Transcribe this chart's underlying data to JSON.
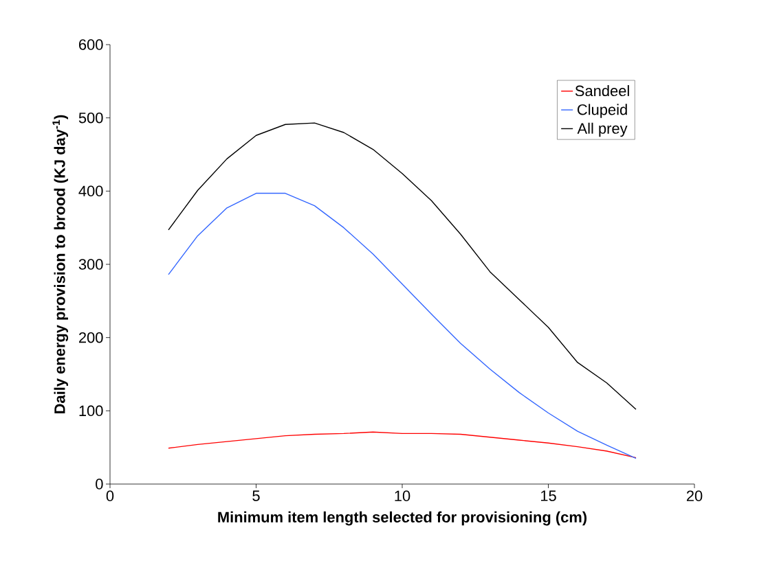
{
  "chart_data": {
    "type": "line",
    "xlabel": "Minimum item length selected for provisioning (cm)",
    "ylabel": "Daily energy provision to brood (KJ day$^{-1}$)",
    "x": [
      2,
      3,
      4,
      5,
      6,
      7,
      8,
      9,
      10,
      11,
      12,
      13,
      14,
      15,
      16,
      17,
      18
    ],
    "series": [
      {
        "name": "Sandeel",
        "color": "#ff0000",
        "values": [
          49,
          54,
          58,
          62,
          66,
          68,
          69,
          71,
          69,
          69,
          68,
          64,
          60,
          56,
          51,
          45,
          36
        ]
      },
      {
        "name": "Clupeid",
        "color": "#3366ff",
        "values": [
          286,
          339,
          377,
          397,
          397,
          380,
          350,
          314,
          273,
          232,
          192,
          157,
          125,
          97,
          72,
          53,
          35
        ]
      },
      {
        "name": "All prey",
        "color": "#000000",
        "values": [
          347,
          401,
          444,
          476,
          491,
          493,
          480,
          457,
          424,
          387,
          341,
          290,
          252,
          214,
          166,
          138,
          102
        ]
      }
    ],
    "xlim": [
      0,
      20
    ],
    "ylim": [
      0,
      600
    ],
    "xticks": [
      0,
      5,
      10,
      15,
      20
    ],
    "yticks": [
      0,
      100,
      200,
      300,
      400,
      500,
      600
    ],
    "grid": false,
    "legend": "top right",
    "marker": "none",
    "line_style": "solid"
  }
}
